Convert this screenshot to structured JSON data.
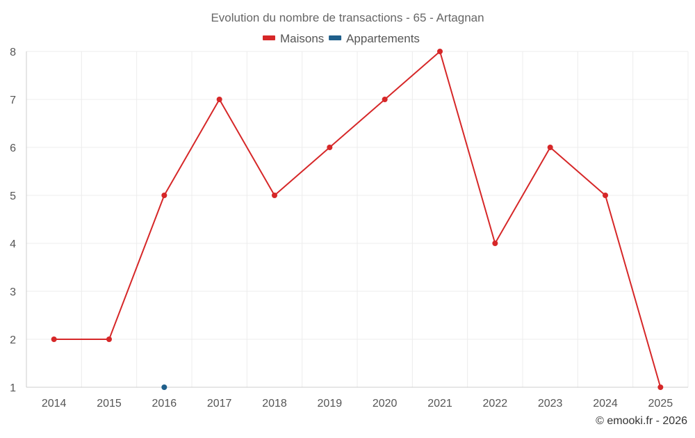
{
  "chart_data": {
    "type": "line",
    "title": "Evolution du nombre de transactions - 65 - Artagnan",
    "categories": [
      "2014",
      "2015",
      "2016",
      "2017",
      "2018",
      "2019",
      "2020",
      "2021",
      "2022",
      "2023",
      "2024",
      "2025"
    ],
    "series": [
      {
        "name": "Maisons",
        "color": "#d62728",
        "values": [
          2,
          2,
          5,
          7,
          5,
          6,
          7,
          8,
          4,
          6,
          5,
          1
        ]
      },
      {
        "name": "Appartements",
        "color": "#1f5f8b",
        "values": [
          null,
          null,
          1,
          null,
          null,
          null,
          null,
          null,
          null,
          null,
          null,
          null
        ]
      }
    ],
    "ylim": [
      1,
      8
    ],
    "yticks": [
      1,
      2,
      3,
      4,
      5,
      6,
      7,
      8
    ],
    "grid": true,
    "legend_position": "top-center"
  },
  "credit": "© emooki.fr - 2026"
}
